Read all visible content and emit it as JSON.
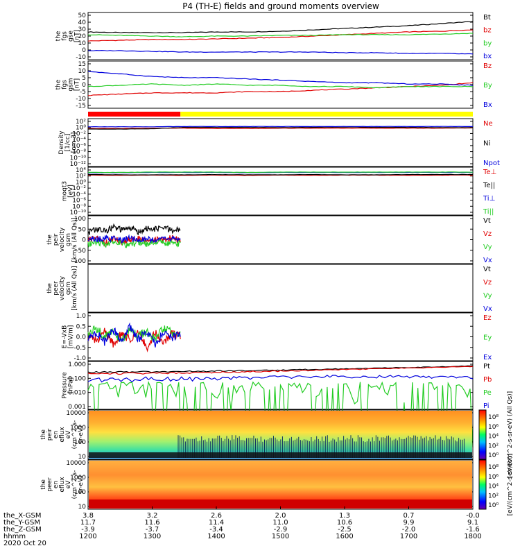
{
  "title": "P4 (TH-E) fields and ground moments overview",
  "colors": {
    "black": "#000000",
    "red": "#e00000",
    "green": "#22cc22",
    "blue": "#0000dd",
    "yellow": "#ffff00",
    "bar_red": "#ff0000"
  },
  "chart_data": [
    {
      "type": "line",
      "id": "fgs_gse",
      "ylabel": [
        "the",
        "fgs",
        "gse",
        "[nT]"
      ],
      "ylim": [
        -10,
        50
      ],
      "yticks": [
        "50",
        "40",
        "30",
        "20",
        "10",
        "0",
        "-10"
      ],
      "series": [
        {
          "name": "Bt",
          "color": "#000000",
          "values": [
            26,
            25,
            25,
            25,
            26,
            26,
            27,
            29,
            31,
            33,
            35,
            38,
            41
          ]
        },
        {
          "name": "bz",
          "color": "#e00000",
          "values": [
            13,
            14,
            15,
            15,
            16,
            17,
            18,
            20,
            22,
            24,
            26,
            27,
            29
          ]
        },
        {
          "name": "by",
          "color": "#22cc22",
          "values": [
            22,
            21,
            20,
            19,
            20,
            20,
            21,
            21,
            22,
            22,
            22,
            23,
            24
          ]
        },
        {
          "name": "bx",
          "color": "#0000dd",
          "values": [
            -1,
            -1,
            -2,
            -3,
            -3,
            -3,
            -3,
            -3,
            -4,
            -4,
            -5,
            -5,
            -6
          ]
        }
      ]
    },
    {
      "type": "line",
      "id": "fgs_gsm",
      "ylabel": [
        "the",
        "fgs",
        "gsm",
        "[nT]"
      ],
      "ylim": [
        -18,
        15
      ],
      "yticks": [
        "15",
        "10",
        "5",
        "0",
        "-5",
        "-10",
        "-15"
      ],
      "series": [
        {
          "name": "Bz",
          "color": "#e00000",
          "values": [
            -10,
            -9,
            -8,
            -8,
            -8,
            -7,
            -7,
            -6,
            -5,
            -4,
            -3,
            -2,
            0
          ]
        },
        {
          "name": "By",
          "color": "#22cc22",
          "values": [
            -3,
            -2,
            -1,
            -2,
            -1,
            -2,
            -2,
            -3,
            -3,
            -4,
            -3,
            -3,
            -3
          ]
        },
        {
          "name": "Bx",
          "color": "#0000dd",
          "values": [
            9,
            7,
            5,
            4,
            4,
            3,
            2,
            1,
            0,
            0,
            -1,
            -1,
            -2
          ]
        }
      ]
    },
    {
      "type": "bar",
      "id": "mode_bar",
      "segments": [
        {
          "start": 0.0,
          "end": 0.24,
          "color": "#ff0000"
        },
        {
          "start": 0.24,
          "end": 1.0,
          "color": "#ffff00"
        }
      ]
    },
    {
      "type": "line",
      "id": "density",
      "scale": "log",
      "ylabel": [
        "Density",
        "[1/cc]",
        "[cm-3]"
      ],
      "ylim": [
        -12,
        3
      ],
      "yticks": [
        "10²",
        "10⁰",
        "10⁻²",
        "10⁻⁴",
        "10⁻⁶",
        "10⁻⁸",
        "10⁻¹⁰",
        "10⁻¹²"
      ],
      "series": [
        {
          "name": "Ne",
          "color": "#e00000",
          "values": [
            0.5,
            0.5,
            0.6,
            0.6,
            0.5,
            0.5,
            0.6,
            0.6,
            0.6,
            0.6,
            0.6,
            0.6,
            0.7
          ]
        },
        {
          "name": "Ni",
          "color": "#000000",
          "values": [
            0.3,
            0.3,
            0.4,
            0.9,
            0.9,
            0.9,
            0.8,
            0.9,
            1.0,
            0.9,
            0.9,
            0.8,
            0.8
          ]
        },
        {
          "name": "Npot",
          "color": "#0000dd",
          "values": [
            1.1,
            1.1,
            1.1,
            1.2,
            1.2,
            1.2,
            1.2,
            1.2,
            1.2,
            1.2,
            1.2,
            1.2,
            1.2
          ]
        }
      ]
    },
    {
      "type": "line",
      "id": "moqt3",
      "scale": "log",
      "ylabel": [
        "moqt3",
        "[eV]"
      ],
      "ylim": [
        -10,
        4
      ],
      "yticks": [
        "10⁴",
        "10²",
        "10⁰",
        "10⁻²",
        "10⁻⁴",
        "10⁻⁶",
        "10⁻⁸",
        "10⁻¹⁰"
      ],
      "series": [
        {
          "name": "Te⊥",
          "color": "#e00000",
          "values": [
            2.3,
            2.2,
            2.3,
            2.2,
            2.3,
            2.2,
            2.3,
            2.2,
            2.3,
            2.3,
            2.2,
            2.3,
            2.3
          ]
        },
        {
          "name": "Te||",
          "color": "#000000",
          "values": [
            2.5,
            2.4,
            2.4,
            2.4,
            2.5,
            2.4,
            2.4,
            2.5,
            2.4,
            2.4,
            2.5,
            2.5,
            2.5
          ]
        },
        {
          "name": "Ti⊥",
          "color": "#0000dd",
          "values": [
            3.1,
            3.1,
            3.2,
            3.2,
            3.2,
            3.1,
            3.2,
            3.2,
            3.2,
            3.2,
            3.2,
            3.2,
            3.2
          ]
        },
        {
          "name": "Ti||",
          "color": "#22cc22",
          "values": [
            3.2,
            3.2,
            3.3,
            3.3,
            3.3,
            3.2,
            3.3,
            3.3,
            3.3,
            3.3,
            3.3,
            3.3,
            3.3
          ]
        }
      ]
    },
    {
      "type": "line",
      "id": "peir_vel",
      "ylabel": [
        "the",
        "peir",
        "velocity",
        "gsm",
        "[km/s (All Qs)]"
      ],
      "ylim": [
        -100,
        100
      ],
      "yticks": [
        "100",
        "50",
        "0",
        "-50",
        "-100"
      ],
      "x_extent": [
        0.0,
        0.24
      ],
      "series": [
        {
          "name": "Vt",
          "color": "#000000",
          "values": [
            35,
            50,
            40,
            60,
            45,
            55,
            38,
            52,
            48,
            58,
            42,
            50
          ]
        },
        {
          "name": "Vz",
          "color": "#e00000",
          "values": [
            -5,
            10,
            -15,
            5,
            -10,
            0,
            8,
            -12,
            4,
            -6,
            10,
            -4
          ]
        },
        {
          "name": "Vy",
          "color": "#22cc22",
          "values": [
            -20,
            -10,
            -25,
            -5,
            -15,
            -30,
            -10,
            -20,
            -8,
            -18,
            -12,
            -22
          ]
        },
        {
          "name": "Vx",
          "color": "#0000dd",
          "values": [
            5,
            0,
            8,
            3,
            -2,
            6,
            1,
            4,
            -3,
            7,
            2,
            0
          ]
        }
      ]
    },
    {
      "type": "line",
      "id": "peer_vel",
      "ylabel": [
        "the",
        "peer",
        "velocity",
        "gsm",
        "[km/s (All Qs)]"
      ],
      "series": [
        {
          "name": "Vt",
          "color": "#000000",
          "values": []
        },
        {
          "name": "Vz",
          "color": "#e00000",
          "values": []
        },
        {
          "name": "Vy",
          "color": "#22cc22",
          "values": []
        },
        {
          "name": "Vx",
          "color": "#0000dd",
          "values": []
        }
      ]
    },
    {
      "type": "line",
      "id": "efield",
      "ylabel": [
        "E=-VxB",
        "[mV/m]"
      ],
      "ylim": [
        -1.5,
        1.5
      ],
      "yticks": [
        "1.0",
        "0.5",
        "0.0",
        "-0.5",
        "-1.0"
      ],
      "x_extent": [
        0.0,
        0.24
      ],
      "series": [
        {
          "name": "Ez",
          "color": "#e00000",
          "values": [
            0.1,
            -0.3,
            0.4,
            -0.5,
            0.2,
            -0.2,
            0.5,
            -0.8,
            0.3,
            -0.4,
            0.2,
            0.0
          ]
        },
        {
          "name": "Ey",
          "color": "#22cc22",
          "values": [
            0.2,
            0.6,
            0.0,
            0.4,
            -0.3,
            0.5,
            0.1,
            0.3,
            -0.2,
            0.6,
            0.3,
            0.1
          ]
        },
        {
          "name": "Ex",
          "color": "#0000dd",
          "values": [
            -0.2,
            0.3,
            -0.4,
            0.5,
            -0.3,
            0.7,
            -0.2,
            0.4,
            -0.5,
            0.3,
            -0.1,
            0.2
          ]
        }
      ]
    },
    {
      "type": "line",
      "id": "pressure",
      "scale": "log",
      "ylabel": [
        "Pressure",
        "[nPa]"
      ],
      "ylim": [
        -3,
        0.1
      ],
      "yticks": [
        "1.000",
        "0.100",
        "0.010",
        "0.001"
      ],
      "series": [
        {
          "name": "Pt",
          "color": "#000000",
          "values": [
            0.33,
            0.34,
            0.35,
            0.37,
            0.4,
            0.43,
            0.47,
            0.52,
            0.58,
            0.65,
            0.73,
            0.82,
            0.95
          ]
        },
        {
          "name": "Pb",
          "color": "#e00000",
          "values": [
            0.26,
            0.27,
            0.28,
            0.3,
            0.33,
            0.36,
            0.4,
            0.45,
            0.51,
            0.58,
            0.66,
            0.75,
            0.88
          ]
        },
        {
          "name": "Pe",
          "color": "#22cc22",
          "values": [
            0.018,
            0.02,
            0.02,
            0.021,
            0.022,
            0.023,
            0.024,
            0.025,
            0.026,
            0.024,
            0.02,
            0.014,
            0.013
          ]
        },
        {
          "name": "Pi",
          "color": "#0000dd",
          "values": [
            0.1,
            0.1,
            0.11,
            0.11,
            0.12,
            0.13,
            0.14,
            0.15,
            0.16,
            0.16,
            0.15,
            0.14,
            0.13
          ]
        }
      ]
    },
    {
      "type": "heatmap",
      "id": "peir_en",
      "ylabel": [
        "the",
        "peir",
        "en",
        "eflux",
        "eV",
        "(cm^2-s-",
        "sr-eV)"
      ],
      "yticks": [
        "10000",
        "1000",
        "100",
        "10"
      ],
      "colorbar_label": "[eV/(cm^2-s-sr-eV) (All Qs)]",
      "colorbar_ticks": [
        "10⁸",
        "10⁶",
        "10⁴",
        "10²",
        "10⁰"
      ]
    },
    {
      "type": "heatmap",
      "id": "peer_en",
      "ylabel": [
        "the",
        "peer",
        "en",
        "eflux",
        "eV",
        "(cm^2-s-",
        "sr-eV)"
      ],
      "yticks": [
        "10000",
        "1000",
        "100",
        "10"
      ],
      "colorbar_label": "[eV/(cm^2-s-sr-eV)]",
      "colorbar_ticks": [
        "10⁸",
        "10⁶",
        "10⁴",
        "10²",
        "10⁰"
      ]
    }
  ],
  "xaxis": {
    "rows": [
      {
        "label": "the_X-GSM",
        "values": [
          "3.8",
          "3.2",
          "2.6",
          "2.0",
          "1.3",
          "0.7",
          "-0.0"
        ]
      },
      {
        "label": "the_Y-GSM",
        "values": [
          "11.7",
          "11.6",
          "11.4",
          "11.0",
          "10.6",
          "9.9",
          "9.1"
        ]
      },
      {
        "label": "the_Z-GSM",
        "values": [
          "-3.9",
          "-3.7",
          "-3.4",
          "-2.9",
          "-2.5",
          "-2.0",
          "-1.6"
        ]
      },
      {
        "label": "hhmm",
        "values": [
          "1200",
          "1300",
          "1400",
          "1500",
          "1600",
          "1700",
          "1800"
        ]
      }
    ],
    "date": "2020 Oct 20"
  }
}
